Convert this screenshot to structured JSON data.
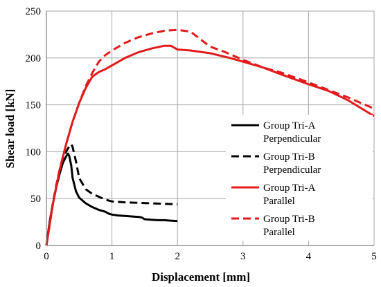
{
  "chart_data": {
    "type": "line",
    "xlabel": "Displacement [mm]",
    "ylabel": "Shear load [kN]",
    "xlim": [
      0,
      5
    ],
    "ylim": [
      0,
      250
    ],
    "xticks": [
      0,
      1,
      2,
      3,
      4,
      5
    ],
    "yticks": [
      0,
      50,
      100,
      150,
      200,
      250
    ],
    "grid": true,
    "legend_position": "center-right",
    "series": [
      {
        "name": "Group Tri-A Perpendicular",
        "color": "#000000",
        "dash": "solid",
        "x": [
          0,
          0.05,
          0.1,
          0.15,
          0.2,
          0.25,
          0.3,
          0.33,
          0.35,
          0.38,
          0.4,
          0.45,
          0.5,
          0.55,
          0.6,
          0.7,
          0.8,
          0.9,
          0.95,
          1.0,
          1.1,
          1.2,
          1.3,
          1.4,
          1.45,
          1.5,
          1.6,
          1.7,
          1.8,
          1.9,
          2.0
        ],
        "y": [
          0,
          25,
          45,
          62,
          76,
          88,
          95,
          98,
          95,
          85,
          72,
          58,
          51,
          48,
          45,
          41,
          38,
          36,
          34,
          33,
          32,
          31.5,
          31,
          30.5,
          30,
          28,
          27.5,
          27,
          27,
          26.5,
          26
        ]
      },
      {
        "name": "Group Tri-B Perpendicular",
        "color": "#000000",
        "dash": "dashed",
        "x": [
          0,
          0.05,
          0.1,
          0.15,
          0.2,
          0.25,
          0.3,
          0.35,
          0.38,
          0.4,
          0.45,
          0.5,
          0.6,
          0.7,
          0.8,
          0.9,
          1.0,
          1.2,
          1.4,
          1.6,
          1.8,
          2.0
        ],
        "y": [
          0,
          25,
          46,
          64,
          80,
          92,
          100,
          106,
          108,
          105,
          90,
          72,
          60,
          55,
          52,
          49,
          47,
          46,
          45.5,
          45,
          44.5,
          44
        ]
      },
      {
        "name": "Group Tri-A Parallel",
        "color": "#e31a1c",
        "dash": "solid",
        "x": [
          0,
          0.1,
          0.2,
          0.3,
          0.4,
          0.5,
          0.6,
          0.7,
          0.8,
          0.9,
          1.0,
          1.2,
          1.4,
          1.6,
          1.8,
          1.9,
          1.95,
          2.0,
          2.2,
          2.5,
          2.8,
          3.0,
          3.3,
          3.6,
          4.0,
          4.3,
          4.6,
          5.0
        ],
        "y": [
          0,
          45,
          80,
          108,
          132,
          152,
          168,
          180,
          185,
          188,
          192,
          200,
          206,
          210,
          213,
          213,
          211,
          209,
          208,
          205,
          200,
          196,
          190,
          182,
          172,
          165,
          155,
          138
        ]
      },
      {
        "name": "Group Tri-B Parallel",
        "color": "#e31a1c",
        "dash": "dashed",
        "x": [
          0,
          0.1,
          0.2,
          0.3,
          0.4,
          0.5,
          0.6,
          0.7,
          0.8,
          0.9,
          1.0,
          1.2,
          1.4,
          1.6,
          1.8,
          2.0,
          2.2,
          2.35,
          2.5,
          2.7,
          3.0,
          3.3,
          3.6,
          4.0,
          4.3,
          4.6,
          5.0
        ],
        "y": [
          0,
          45,
          80,
          108,
          132,
          152,
          170,
          184,
          196,
          203,
          208,
          216,
          222,
          226,
          229,
          230,
          228,
          220,
          212,
          207,
          198,
          190,
          184,
          174,
          166,
          158,
          146
        ]
      }
    ]
  }
}
